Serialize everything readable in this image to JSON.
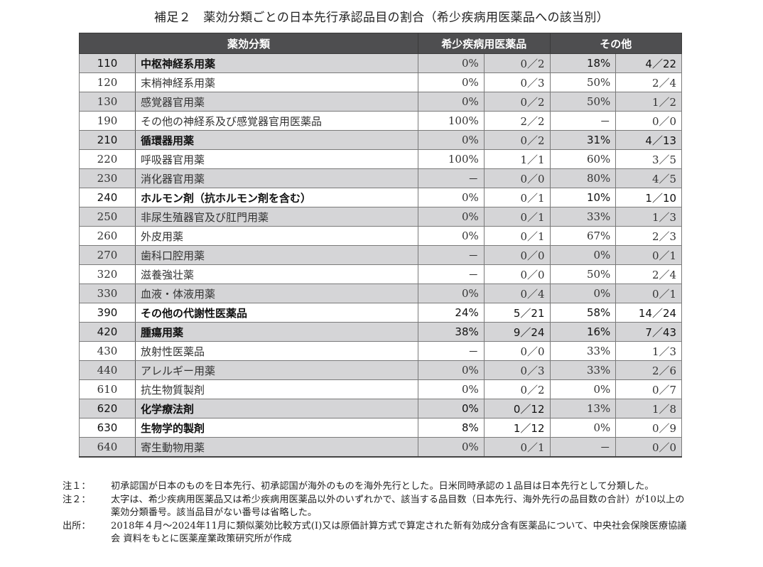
{
  "title": "補足２　薬効分類ごとの日本先行承認品目の割合（希少疾病用医薬品への該当別）",
  "table": {
    "headers": {
      "category": "薬効分類",
      "orphan": "希少疾病用医薬品",
      "other": "その他"
    },
    "rows": [
      {
        "code": "110",
        "name": "中枢神経系用薬",
        "bold_name": true,
        "orphan_pct": "0%",
        "orphan_ratio": "0／2",
        "orphan_bold": false,
        "other_pct": "18%",
        "other_ratio": "4／22",
        "other_bold": true,
        "shade": true
      },
      {
        "code": "120",
        "name": "末梢神経系用薬",
        "bold_name": false,
        "orphan_pct": "0%",
        "orphan_ratio": "0／3",
        "orphan_bold": false,
        "other_pct": "50%",
        "other_ratio": "2／4",
        "other_bold": false,
        "shade": false
      },
      {
        "code": "130",
        "name": "感覚器官用薬",
        "bold_name": false,
        "orphan_pct": "0%",
        "orphan_ratio": "0／2",
        "orphan_bold": false,
        "other_pct": "50%",
        "other_ratio": "1／2",
        "other_bold": false,
        "shade": true
      },
      {
        "code": "190",
        "name": "その他の神経系及び感覚器官用医薬品",
        "bold_name": false,
        "orphan_pct": "100%",
        "orphan_ratio": "2／2",
        "orphan_bold": false,
        "other_pct": "－",
        "other_ratio": "0／0",
        "other_bold": false,
        "shade": false
      },
      {
        "code": "210",
        "name": "循環器用薬",
        "bold_name": true,
        "orphan_pct": "0%",
        "orphan_ratio": "0／2",
        "orphan_bold": false,
        "other_pct": "31%",
        "other_ratio": "4／13",
        "other_bold": true,
        "shade": true
      },
      {
        "code": "220",
        "name": "呼吸器官用薬",
        "bold_name": false,
        "orphan_pct": "100%",
        "orphan_ratio": "1／1",
        "orphan_bold": false,
        "other_pct": "60%",
        "other_ratio": "3／5",
        "other_bold": false,
        "shade": false
      },
      {
        "code": "230",
        "name": "消化器官用薬",
        "bold_name": false,
        "orphan_pct": "－",
        "orphan_ratio": "0／0",
        "orphan_bold": false,
        "other_pct": "80%",
        "other_ratio": "4／5",
        "other_bold": false,
        "shade": true
      },
      {
        "code": "240",
        "name": "ホルモン剤（抗ホルモン剤を含む）",
        "bold_name": true,
        "orphan_pct": "0%",
        "orphan_ratio": "0／1",
        "orphan_bold": false,
        "other_pct": "10%",
        "other_ratio": "1／10",
        "other_bold": true,
        "shade": false
      },
      {
        "code": "250",
        "name": "非尿生殖器官及び肛門用薬",
        "bold_name": false,
        "orphan_pct": "0%",
        "orphan_ratio": "0／1",
        "orphan_bold": false,
        "other_pct": "33%",
        "other_ratio": "1／3",
        "other_bold": false,
        "shade": true
      },
      {
        "code": "260",
        "name": "外皮用薬",
        "bold_name": false,
        "orphan_pct": "0%",
        "orphan_ratio": "0／1",
        "orphan_bold": false,
        "other_pct": "67%",
        "other_ratio": "2／3",
        "other_bold": false,
        "shade": false
      },
      {
        "code": "270",
        "name": "歯科口腔用薬",
        "bold_name": false,
        "orphan_pct": "－",
        "orphan_ratio": "0／0",
        "orphan_bold": false,
        "other_pct": "0%",
        "other_ratio": "0／1",
        "other_bold": false,
        "shade": true
      },
      {
        "code": "320",
        "name": "滋養強壮薬",
        "bold_name": false,
        "orphan_pct": "－",
        "orphan_ratio": "0／0",
        "orphan_bold": false,
        "other_pct": "50%",
        "other_ratio": "2／4",
        "other_bold": false,
        "shade": false
      },
      {
        "code": "330",
        "name": "血液・体液用薬",
        "bold_name": false,
        "orphan_pct": "0%",
        "orphan_ratio": "0／4",
        "orphan_bold": false,
        "other_pct": "0%",
        "other_ratio": "0／1",
        "other_bold": false,
        "shade": true
      },
      {
        "code": "390",
        "name": "その他の代謝性医薬品",
        "bold_name": true,
        "orphan_pct": "24%",
        "orphan_ratio": "5／21",
        "orphan_bold": true,
        "other_pct": "58%",
        "other_ratio": "14／24",
        "other_bold": true,
        "shade": false
      },
      {
        "code": "420",
        "name": "腫瘍用薬",
        "bold_name": true,
        "orphan_pct": "38%",
        "orphan_ratio": "9／24",
        "orphan_bold": true,
        "other_pct": "16%",
        "other_ratio": "7／43",
        "other_bold": true,
        "shade": true
      },
      {
        "code": "430",
        "name": "放射性医薬品",
        "bold_name": false,
        "orphan_pct": "－",
        "orphan_ratio": "0／0",
        "orphan_bold": false,
        "other_pct": "33%",
        "other_ratio": "1／3",
        "other_bold": false,
        "shade": false
      },
      {
        "code": "440",
        "name": "アレルギー用薬",
        "bold_name": false,
        "orphan_pct": "0%",
        "orphan_ratio": "0／3",
        "orphan_bold": false,
        "other_pct": "33%",
        "other_ratio": "2／6",
        "other_bold": false,
        "shade": true
      },
      {
        "code": "610",
        "name": "抗生物質製剤",
        "bold_name": false,
        "orphan_pct": "0%",
        "orphan_ratio": "0／2",
        "orphan_bold": false,
        "other_pct": "0%",
        "other_ratio": "0／7",
        "other_bold": false,
        "shade": false
      },
      {
        "code": "620",
        "name": "化学療法剤",
        "bold_name": true,
        "orphan_pct": "0%",
        "orphan_ratio": "0／12",
        "orphan_bold": true,
        "other_pct": "13%",
        "other_ratio": "1／8",
        "other_bold": false,
        "shade": true
      },
      {
        "code": "630",
        "name": "生物学的製剤",
        "bold_name": true,
        "orphan_pct": "8%",
        "orphan_ratio": "1／12",
        "orphan_bold": true,
        "other_pct": "0%",
        "other_ratio": "0／9",
        "other_bold": false,
        "shade": false
      },
      {
        "code": "640",
        "name": "寄生動物用薬",
        "bold_name": false,
        "orphan_pct": "0%",
        "orphan_ratio": "0／1",
        "orphan_bold": false,
        "other_pct": "－",
        "other_ratio": "0／0",
        "other_bold": false,
        "shade": true
      }
    ]
  },
  "notes": [
    {
      "label": "注１：",
      "text": "初承認国が日本のものを日本先行、初承認国が海外のものを海外先行とした。日米同時承認の１品目は日本先行として分類した。"
    },
    {
      "label": "注２：",
      "text": "太字は、希少疾病用医薬品又は希少疾病用医薬品以外のいずれかで、該当する品目数（日本先行、海外先行の品目数の合計）が10以上の薬効分類番号。該当品目がない番号は省略した。"
    },
    {
      "label": "出所：",
      "text": "2018年４月～2024年11月に類似薬効比較方式(Ⅰ)又は原価計算方式で算定された新有効成分含有医薬品について、中央社会保険医療協議会 資料をもとに医薬産業政策研究所が作成"
    }
  ],
  "colors": {
    "header_bg": "#4e4e50",
    "shade_bg": "#d5d5d7",
    "border": "#7a7a7a"
  }
}
